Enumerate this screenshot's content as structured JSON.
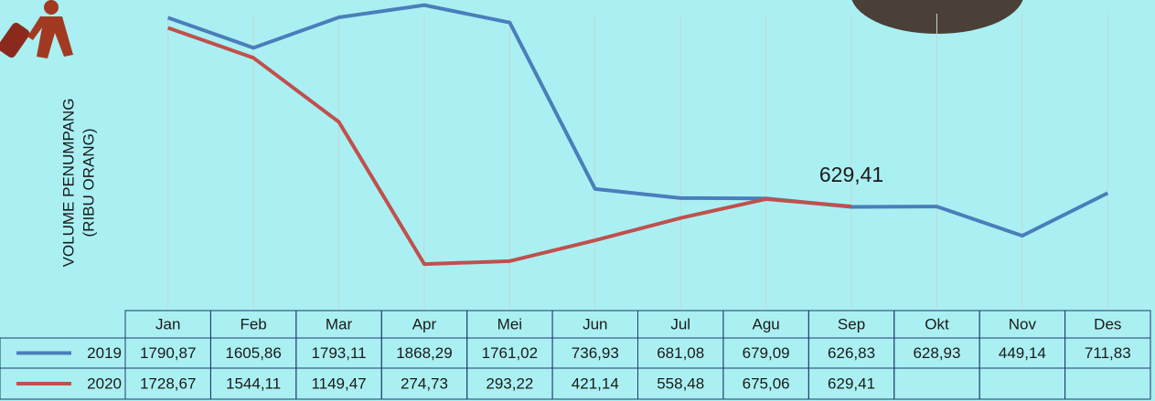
{
  "chart_data": {
    "type": "line",
    "ylabel": [
      "VOLUME PENUMPANG",
      "(RIBU ORANG)"
    ],
    "categories": [
      "Jan",
      "Feb",
      "Mar",
      "Apr",
      "Mei",
      "Jun",
      "Jul",
      "Agu",
      "Sep",
      "Okt",
      "Nov",
      "Des"
    ],
    "series": [
      {
        "name": "2019",
        "color": "#4a7ebb",
        "values": [
          1790.87,
          1605.86,
          1793.11,
          1868.29,
          1761.02,
          736.93,
          681.08,
          679.09,
          626.83,
          628.93,
          449.14,
          711.83
        ],
        "value_labels": [
          "1790,87",
          "1605,86",
          "1793,11",
          "1868,29",
          "1761,02",
          "736,93",
          "681,08",
          "679,09",
          "626,83",
          "628,93",
          "449,14",
          "711,83"
        ]
      },
      {
        "name": "2020",
        "color": "#c0504d",
        "values": [
          1728.67,
          1544.11,
          1149.47,
          274.73,
          293.22,
          421.14,
          558.48,
          675.06,
          629.41,
          null,
          null,
          null
        ],
        "value_labels": [
          "1728,67",
          "1544,11",
          "1149,47",
          "274,73",
          "293,22",
          "421,14",
          "558,48",
          "675,06",
          "629,41",
          null,
          null,
          null
        ]
      }
    ],
    "ylim": [
      0,
      1900
    ],
    "grid": "x"
  }
}
